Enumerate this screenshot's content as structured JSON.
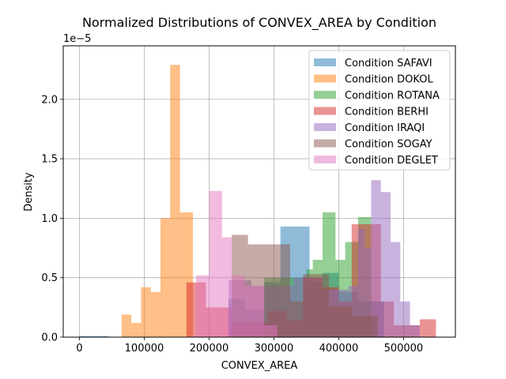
{
  "chart_data": {
    "type": "histogram",
    "title": "Normalized Distributions of CONVEX_AREA by Condition",
    "xlabel": "CONVEX_AREA",
    "ylabel": "Density",
    "y_scale_label": "1e−5",
    "xlim": [
      -25000,
      580000
    ],
    "ylim": [
      0,
      2.45
    ],
    "y_multiplier": 1e-05,
    "x_ticks": [
      0,
      100000,
      200000,
      300000,
      400000,
      500000
    ],
    "x_tick_labels": [
      "0",
      "100000",
      "200000",
      "300000",
      "400000",
      "500000"
    ],
    "y_ticks": [
      0.0,
      0.5,
      1.0,
      1.5,
      2.0
    ],
    "y_tick_labels": [
      "0.0",
      "0.5",
      "1.0",
      "1.5",
      "2.0"
    ],
    "grid": true,
    "legend_position": "upper right",
    "alpha": 0.5,
    "series": [
      {
        "name": "Condition SAFAVI",
        "color": "#1f77b4",
        "bins": [
          {
            "x0": 0,
            "x1": 45000,
            "y": 0.01
          },
          {
            "x0": 230000,
            "x1": 255000,
            "y": 0.32
          },
          {
            "x0": 255000,
            "x1": 285000,
            "y": 0.23
          },
          {
            "x0": 285000,
            "x1": 310000,
            "y": 0.46
          },
          {
            "x0": 310000,
            "x1": 355000,
            "y": 0.93
          },
          {
            "x0": 355000,
            "x1": 375000,
            "y": 0.46
          },
          {
            "x0": 375000,
            "x1": 400000,
            "y": 0.54
          },
          {
            "x0": 400000,
            "x1": 430000,
            "y": 0.38
          },
          {
            "x0": 430000,
            "x1": 470000,
            "y": 0.3
          }
        ]
      },
      {
        "name": "Condition DOKOL",
        "color": "#ff7f0e",
        "bins": [
          {
            "x0": 65000,
            "x1": 80000,
            "y": 0.19
          },
          {
            "x0": 80000,
            "x1": 95000,
            "y": 0.12
          },
          {
            "x0": 95000,
            "x1": 110000,
            "y": 0.42
          },
          {
            "x0": 110000,
            "x1": 125000,
            "y": 0.38
          },
          {
            "x0": 125000,
            "x1": 140000,
            "y": 1.0
          },
          {
            "x0": 140000,
            "x1": 155000,
            "y": 2.29
          },
          {
            "x0": 155000,
            "x1": 175000,
            "y": 1.05
          }
        ]
      },
      {
        "name": "Condition ROTANA",
        "color": "#2ca02c",
        "bins": [
          {
            "x0": 285000,
            "x1": 350000,
            "y": 0.5
          },
          {
            "x0": 350000,
            "x1": 360000,
            "y": 0.57
          },
          {
            "x0": 360000,
            "x1": 375000,
            "y": 0.65
          },
          {
            "x0": 375000,
            "x1": 395000,
            "y": 1.05
          },
          {
            "x0": 395000,
            "x1": 410000,
            "y": 0.65
          },
          {
            "x0": 410000,
            "x1": 430000,
            "y": 0.8
          },
          {
            "x0": 430000,
            "x1": 450000,
            "y": 1.01
          }
        ]
      },
      {
        "name": "Condition BERHI",
        "color": "#d62728",
        "bins": [
          {
            "x0": 165000,
            "x1": 195000,
            "y": 0.46
          },
          {
            "x0": 195000,
            "x1": 235000,
            "y": 0.25
          },
          {
            "x0": 235000,
            "x1": 290000,
            "y": 0.13
          },
          {
            "x0": 290000,
            "x1": 320000,
            "y": 0.22
          },
          {
            "x0": 320000,
            "x1": 345000,
            "y": 0.14
          },
          {
            "x0": 345000,
            "x1": 375000,
            "y": 0.5
          },
          {
            "x0": 375000,
            "x1": 400000,
            "y": 0.42
          },
          {
            "x0": 400000,
            "x1": 420000,
            "y": 0.3
          },
          {
            "x0": 420000,
            "x1": 440000,
            "y": 0.95
          },
          {
            "x0": 440000,
            "x1": 465000,
            "y": 0.95
          },
          {
            "x0": 465000,
            "x1": 485000,
            "y": 0.3
          },
          {
            "x0": 485000,
            "x1": 525000,
            "y": 0.1
          },
          {
            "x0": 525000,
            "x1": 550000,
            "y": 0.15
          }
        ]
      },
      {
        "name": "Condition IRAQI",
        "color": "#9467bd",
        "bins": [
          {
            "x0": 230000,
            "x1": 265000,
            "y": 0.48
          },
          {
            "x0": 265000,
            "x1": 330000,
            "y": 0.43
          },
          {
            "x0": 330000,
            "x1": 375000,
            "y": 0.5
          },
          {
            "x0": 375000,
            "x1": 415000,
            "y": 0.4
          },
          {
            "x0": 415000,
            "x1": 430000,
            "y": 0.43
          },
          {
            "x0": 430000,
            "x1": 440000,
            "y": 0.91
          },
          {
            "x0": 440000,
            "x1": 450000,
            "y": 0.75
          },
          {
            "x0": 450000,
            "x1": 465000,
            "y": 1.32
          },
          {
            "x0": 465000,
            "x1": 480000,
            "y": 1.22
          },
          {
            "x0": 480000,
            "x1": 495000,
            "y": 0.8
          },
          {
            "x0": 495000,
            "x1": 510000,
            "y": 0.3
          },
          {
            "x0": 510000,
            "x1": 525000,
            "y": 0.1
          }
        ]
      },
      {
        "name": "Condition SOGAY",
        "color": "#8c564b",
        "bins": [
          {
            "x0": 235000,
            "x1": 260000,
            "y": 0.86
          },
          {
            "x0": 260000,
            "x1": 290000,
            "y": 0.78
          },
          {
            "x0": 290000,
            "x1": 325000,
            "y": 0.78
          },
          {
            "x0": 325000,
            "x1": 345000,
            "y": 0.3
          },
          {
            "x0": 345000,
            "x1": 385000,
            "y": 0.53
          },
          {
            "x0": 385000,
            "x1": 420000,
            "y": 0.26
          },
          {
            "x0": 420000,
            "x1": 460000,
            "y": 0.18
          }
        ]
      },
      {
        "name": "Condition DEGLET",
        "color": "#e377c2",
        "bins": [
          {
            "x0": 180000,
            "x1": 200000,
            "y": 0.52
          },
          {
            "x0": 200000,
            "x1": 220000,
            "y": 1.23
          },
          {
            "x0": 220000,
            "x1": 235000,
            "y": 0.84
          },
          {
            "x0": 235000,
            "x1": 255000,
            "y": 0.52
          },
          {
            "x0": 255000,
            "x1": 285000,
            "y": 0.43
          },
          {
            "x0": 285000,
            "x1": 305000,
            "y": 0.1
          }
        ]
      }
    ]
  }
}
